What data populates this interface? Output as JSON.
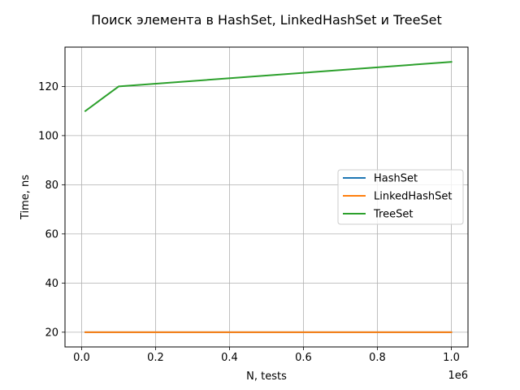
{
  "chart_data": {
    "type": "line",
    "title": "Поиск элемента в HashSet, LinkedHashSet и TreeSet",
    "xlabel": "N, tests",
    "ylabel": "Time, ns",
    "x_offset_label": "1e6",
    "xlim": [
      -45000,
      1045000
    ],
    "ylim": [
      14,
      136
    ],
    "x_ticks": [
      0,
      200000,
      400000,
      600000,
      800000,
      1000000
    ],
    "x_tick_labels": [
      "0.0",
      "0.2",
      "0.4",
      "0.6",
      "0.8",
      "1.0"
    ],
    "y_ticks": [
      20,
      40,
      60,
      80,
      100,
      120
    ],
    "y_tick_labels": [
      "20",
      "40",
      "60",
      "80",
      "100",
      "120"
    ],
    "grid": true,
    "legend_position": "center-right",
    "series": [
      {
        "name": "HashSet",
        "color": "#1f77b4",
        "x": [
          10000,
          100000,
          1000000
        ],
        "y": [
          20,
          20,
          20
        ]
      },
      {
        "name": "LinkedHashSet",
        "color": "#ff7f0e",
        "x": [
          10000,
          100000,
          1000000
        ],
        "y": [
          20,
          20,
          20
        ]
      },
      {
        "name": "TreeSet",
        "color": "#2ca02c",
        "x": [
          10000,
          100000,
          1000000
        ],
        "y": [
          110,
          120,
          130
        ]
      }
    ]
  }
}
